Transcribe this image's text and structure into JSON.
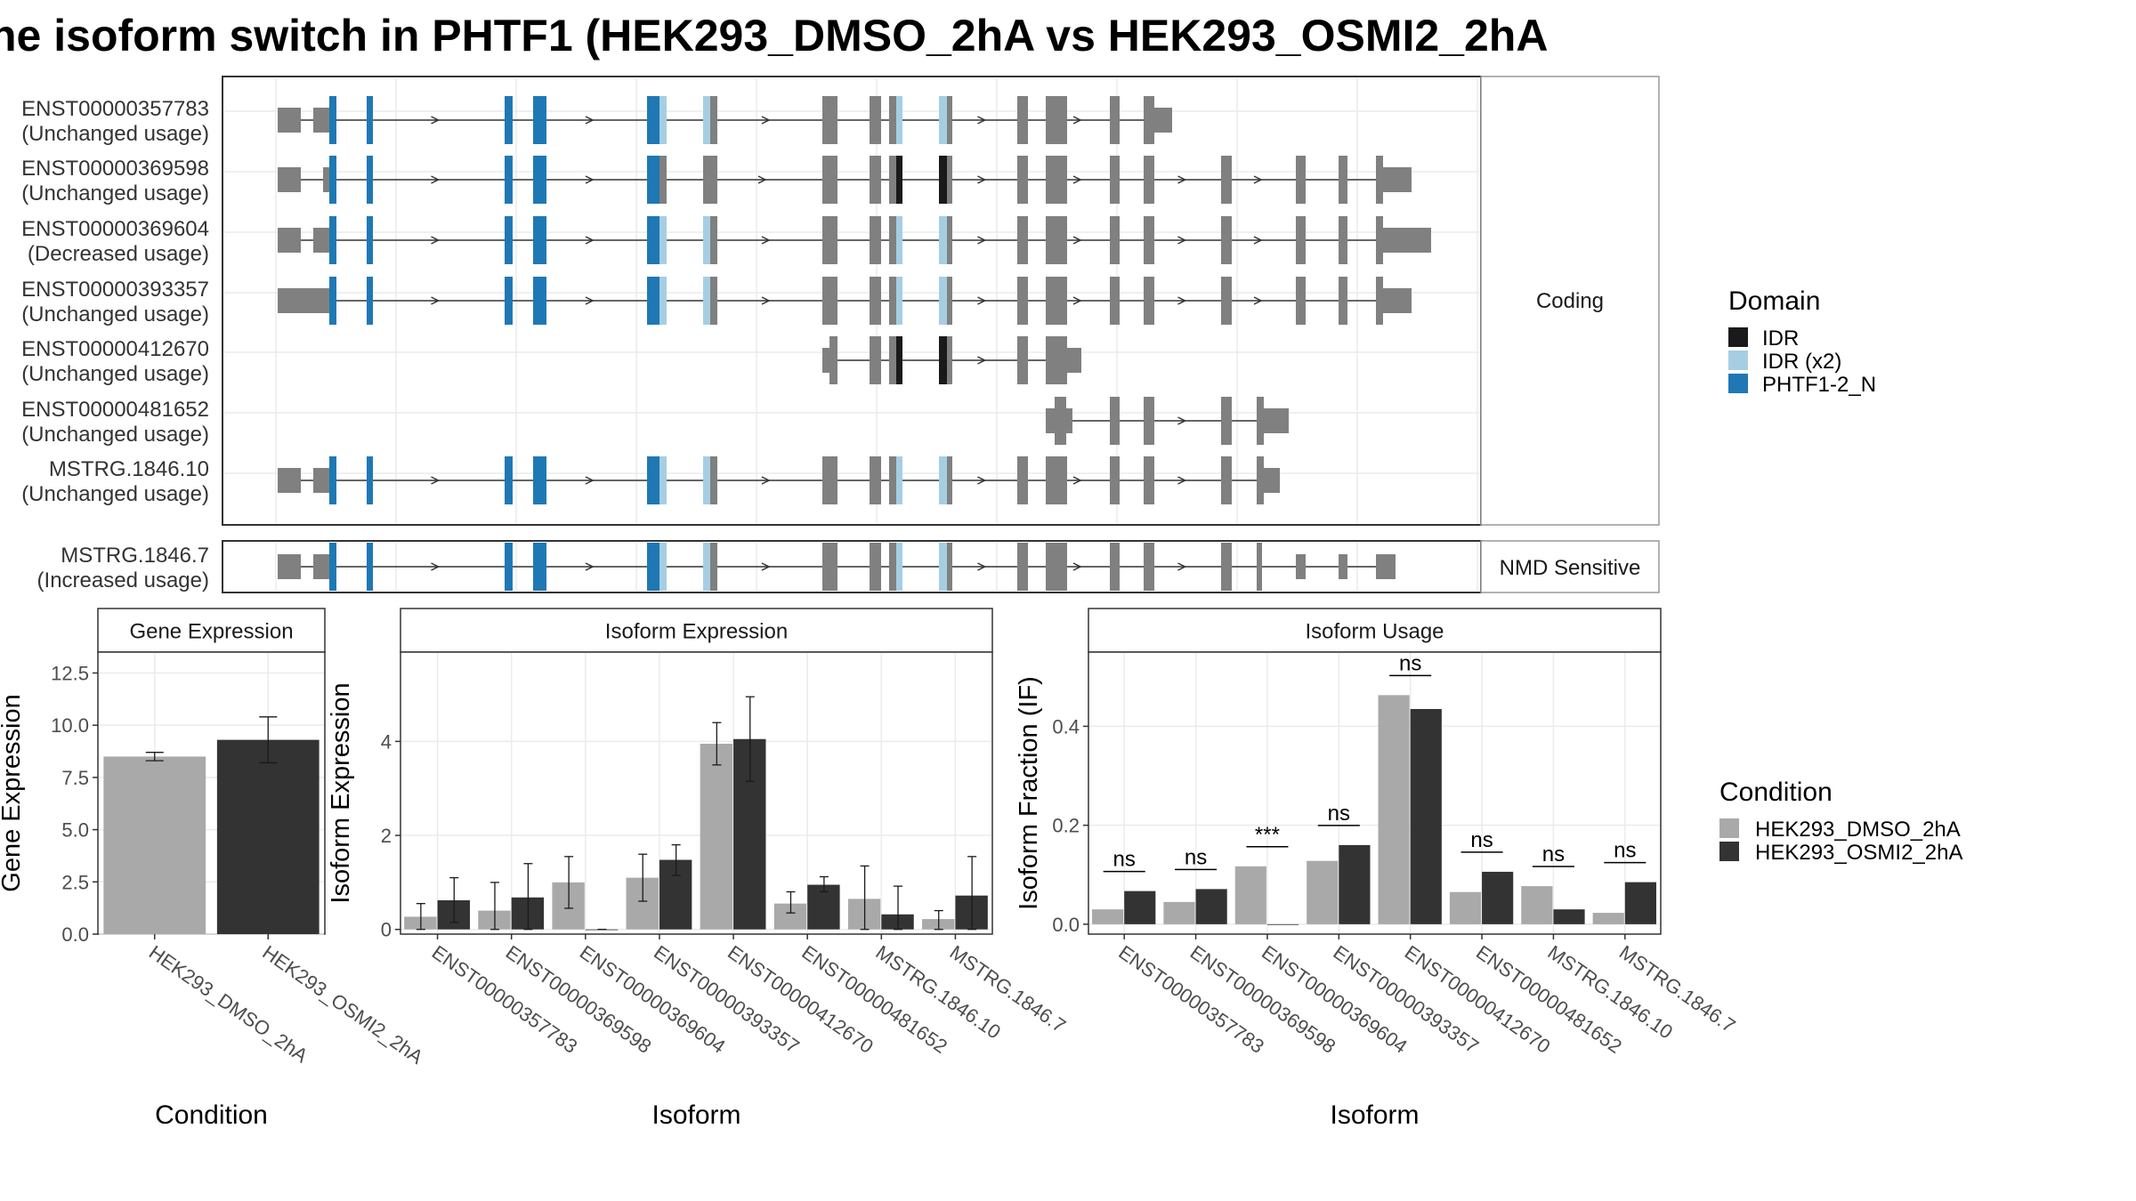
{
  "title": "ne isoform switch in PHTF1 (HEK293_DMSO_2hA vs HEK293_OSMI2_2hA",
  "colors": {
    "exon": "#808080",
    "idr": "#1a1a1a",
    "idr_x2": "#a6cee3",
    "phtf1_n": "#1f78b4",
    "cond1": "#a9a9a9",
    "cond2": "#333333",
    "panel_border": "#333333",
    "strip_border": "#999999",
    "grid": "#ebebeb"
  },
  "structure": {
    "facets": {
      "coding": "Coding",
      "nmd": "NMD Sensitive"
    },
    "transcripts": [
      {
        "id": "ENST00000357783",
        "usage": "(Unchanged usage)"
      },
      {
        "id": "ENST00000369598",
        "usage": "(Unchanged usage)"
      },
      {
        "id": "ENST00000369604",
        "usage": "(Decreased usage)"
      },
      {
        "id": "ENST00000393357",
        "usage": "(Unchanged usage)"
      },
      {
        "id": "ENST00000412670",
        "usage": "(Unchanged usage)"
      },
      {
        "id": "ENST00000481652",
        "usage": "(Unchanged usage)"
      },
      {
        "id": "MSTRG.1846.10",
        "usage": "(Unchanged usage)"
      },
      {
        "id": "MSTRG.1846.7",
        "usage": "(Increased usage)"
      }
    ]
  },
  "legend_domain": {
    "title": "Domain",
    "items": [
      {
        "label": "IDR",
        "color": "#1a1a1a"
      },
      {
        "label": "IDR (x2)",
        "color": "#a6cee3"
      },
      {
        "label": "PHTF1-2_N",
        "color": "#1f78b4"
      }
    ]
  },
  "legend_condition": {
    "title": "Condition",
    "items": [
      {
        "label": "HEK293_DMSO_2hA",
        "color": "#a9a9a9"
      },
      {
        "label": "HEK293_OSMI2_2hA",
        "color": "#333333"
      }
    ]
  },
  "chart_data": [
    {
      "type": "bar",
      "title": "Gene Expression",
      "xlabel": "Condition",
      "ylabel": "Gene Expression",
      "ylim": [
        0,
        13.5
      ],
      "yticks": [
        0.0,
        2.5,
        5.0,
        7.5,
        10.0,
        12.5
      ],
      "ytick_labels": [
        "0.0",
        "2.5",
        "5.0",
        "7.5",
        "10.0",
        "12.5"
      ],
      "categories": [
        "HEK293_DMSO_2hA",
        "HEK293_OSMI2_2hA"
      ],
      "values": [
        8.5,
        9.3
      ],
      "errors": [
        [
          8.3,
          8.7
        ],
        [
          8.2,
          10.4
        ]
      ]
    },
    {
      "type": "bar",
      "title": "Isoform Expression",
      "xlabel": "Isoform",
      "ylabel": "Isoform Expression",
      "ylim": [
        -0.1,
        5.9
      ],
      "yticks": [
        0,
        2,
        4
      ],
      "ytick_labels": [
        "0",
        "2",
        "4"
      ],
      "categories": [
        "ENST00000357783",
        "ENST00000369598",
        "ENST00000369604",
        "ENST00000393357",
        "ENST00000412670",
        "ENST00000481652",
        "MSTRG.1846.10",
        "MSTRG.1846.7"
      ],
      "series": [
        {
          "name": "HEK293_DMSO_2hA",
          "values": [
            0.27,
            0.4,
            1.0,
            1.1,
            3.95,
            0.55,
            0.65,
            0.22
          ],
          "errors": [
            [
              0.0,
              0.55
            ],
            [
              0.0,
              1.0
            ],
            [
              0.45,
              1.55
            ],
            [
              0.6,
              1.6
            ],
            [
              3.5,
              4.4
            ],
            [
              0.35,
              0.8
            ],
            [
              0.0,
              1.35
            ],
            [
              0.0,
              0.4
            ]
          ]
        },
        {
          "name": "HEK293_OSMI2_2hA",
          "values": [
            0.62,
            0.68,
            0.0,
            1.48,
            4.05,
            0.95,
            0.32,
            0.72
          ],
          "errors": [
            [
              0.15,
              1.1
            ],
            [
              0.0,
              1.4
            ],
            [
              0.0,
              0.0
            ],
            [
              1.15,
              1.8
            ],
            [
              3.15,
              4.95
            ],
            [
              0.8,
              1.12
            ],
            [
              0.0,
              0.92
            ],
            [
              0.0,
              1.55
            ]
          ]
        }
      ]
    },
    {
      "type": "bar",
      "title": "Isoform Usage",
      "xlabel": "Isoform",
      "ylabel": "Isoform Fraction (IF)",
      "ylim": [
        -0.02,
        0.55
      ],
      "yticks": [
        0.0,
        0.2,
        0.4
      ],
      "ytick_labels": [
        "0.0",
        "0.2",
        "0.4"
      ],
      "categories": [
        "ENST00000357783",
        "ENST00000369598",
        "ENST00000369604",
        "ENST00000393357",
        "ENST00000412670",
        "ENST00000481652",
        "MSTRG.1846.10",
        "MSTRG.1846.7"
      ],
      "series": [
        {
          "name": "HEK293_DMSO_2hA",
          "values": [
            0.03,
            0.045,
            0.117,
            0.128,
            0.463,
            0.065,
            0.077,
            0.023
          ]
        },
        {
          "name": "HEK293_OSMI2_2hA",
          "values": [
            0.067,
            0.071,
            0.0,
            0.16,
            0.435,
            0.106,
            0.03,
            0.085
          ]
        }
      ],
      "significance": [
        "ns",
        "ns",
        "***",
        "ns",
        "ns",
        "ns",
        "ns",
        "ns"
      ]
    }
  ]
}
